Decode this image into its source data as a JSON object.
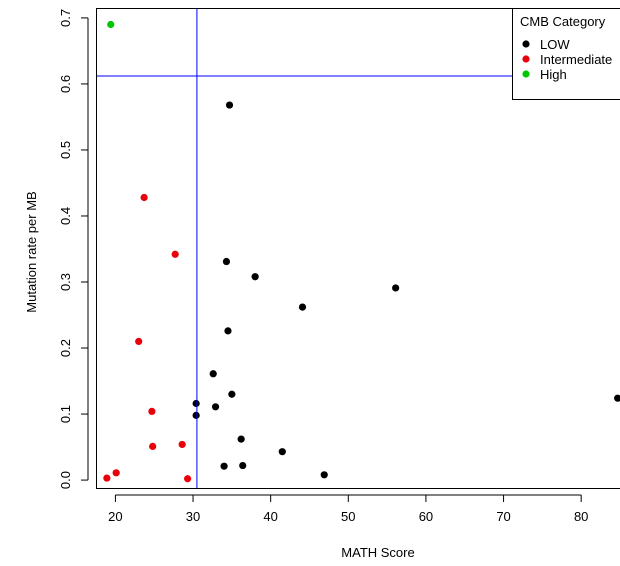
{
  "chart_data": {
    "type": "scatter",
    "title": "",
    "xlabel": "MATH Score",
    "ylabel": "Mutation rate per MB",
    "xlim": [
      17.5,
      85
    ],
    "ylim": [
      -0.012,
      0.715
    ],
    "xticks": [
      20,
      30,
      40,
      50,
      60,
      70,
      80
    ],
    "yticks": [
      0.0,
      0.1,
      0.2,
      0.3,
      0.4,
      0.5,
      0.6,
      0.7
    ],
    "ytick_labels": [
      "0.0",
      "0.1",
      "0.2",
      "0.3",
      "0.4",
      "0.5",
      "0.6",
      "0.7"
    ],
    "grid": false,
    "reference_lines": {
      "vertical_x": 30.5,
      "horizontal_y": 0.612,
      "color": "#0000ff"
    },
    "legend": {
      "title": "CMB Category",
      "placement": "top-right",
      "entries": [
        {
          "label": "LOW",
          "color": "#000000"
        },
        {
          "label": "Intermediate",
          "color": "#e8000b"
        },
        {
          "label": "High",
          "color": "#00c800"
        }
      ]
    },
    "series": [
      {
        "name": "LOW",
        "color": "#000000",
        "points": [
          {
            "x": 34.7,
            "y": 0.568
          },
          {
            "x": 34.3,
            "y": 0.331
          },
          {
            "x": 38.0,
            "y": 0.308
          },
          {
            "x": 44.1,
            "y": 0.262
          },
          {
            "x": 56.1,
            "y": 0.291
          },
          {
            "x": 34.5,
            "y": 0.226
          },
          {
            "x": 32.6,
            "y": 0.161
          },
          {
            "x": 35.0,
            "y": 0.13
          },
          {
            "x": 32.9,
            "y": 0.111
          },
          {
            "x": 30.4,
            "y": 0.116
          },
          {
            "x": 30.4,
            "y": 0.098
          },
          {
            "x": 36.2,
            "y": 0.062
          },
          {
            "x": 41.5,
            "y": 0.043
          },
          {
            "x": 34.0,
            "y": 0.021
          },
          {
            "x": 36.4,
            "y": 0.022
          },
          {
            "x": 46.9,
            "y": 0.008
          },
          {
            "x": 84.7,
            "y": 0.124
          }
        ]
      },
      {
        "name": "Intermediate",
        "color": "#e8000b",
        "points": [
          {
            "x": 23.7,
            "y": 0.428
          },
          {
            "x": 27.7,
            "y": 0.342
          },
          {
            "x": 23.0,
            "y": 0.21
          },
          {
            "x": 24.7,
            "y": 0.104
          },
          {
            "x": 24.8,
            "y": 0.051
          },
          {
            "x": 28.6,
            "y": 0.054
          },
          {
            "x": 20.1,
            "y": 0.011
          },
          {
            "x": 18.9,
            "y": 0.003
          },
          {
            "x": 29.3,
            "y": 0.002
          }
        ]
      },
      {
        "name": "High",
        "color": "#00c800",
        "points": [
          {
            "x": 19.4,
            "y": 0.69
          }
        ]
      }
    ]
  }
}
